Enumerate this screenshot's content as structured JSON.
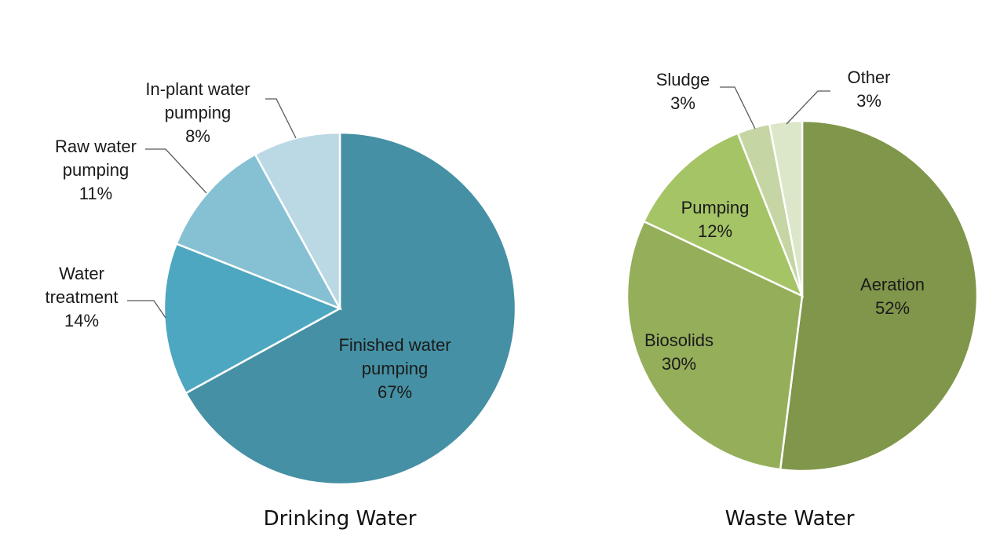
{
  "chart_data": [
    {
      "type": "pie",
      "title": "Drinking Water",
      "slices": [
        {
          "label": [
            "Finished water",
            "pumping"
          ],
          "value": 67,
          "display": "67%",
          "color": "#4590A4"
        },
        {
          "label": [
            "Water",
            "treatment"
          ],
          "value": 14,
          "display": "14%",
          "color": "#4EA7C0"
        },
        {
          "label": [
            "Raw water",
            "pumping"
          ],
          "value": 11,
          "display": "11%",
          "color": "#86C0D3"
        },
        {
          "label": [
            "In-plant water",
            "pumping"
          ],
          "value": 8,
          "display": "8%",
          "color": "#BBD9E5"
        }
      ]
    },
    {
      "type": "pie",
      "title": "Waste Water",
      "slices": [
        {
          "label": [
            "Aeration"
          ],
          "value": 52,
          "display": "52%",
          "color": "#80964B"
        },
        {
          "label": [
            "Biosolids"
          ],
          "value": 30,
          "display": "30%",
          "color": "#95AE5A"
        },
        {
          "label": [
            "Pumping"
          ],
          "value": 12,
          "display": "12%",
          "color": "#A5C466"
        },
        {
          "label": [
            "Sludge"
          ],
          "value": 3,
          "display": "3%",
          "color": "#C5D5A3"
        },
        {
          "label": [
            "Other"
          ],
          "value": 3,
          "display": "3%",
          "color": "#DCE6C8"
        }
      ]
    }
  ]
}
